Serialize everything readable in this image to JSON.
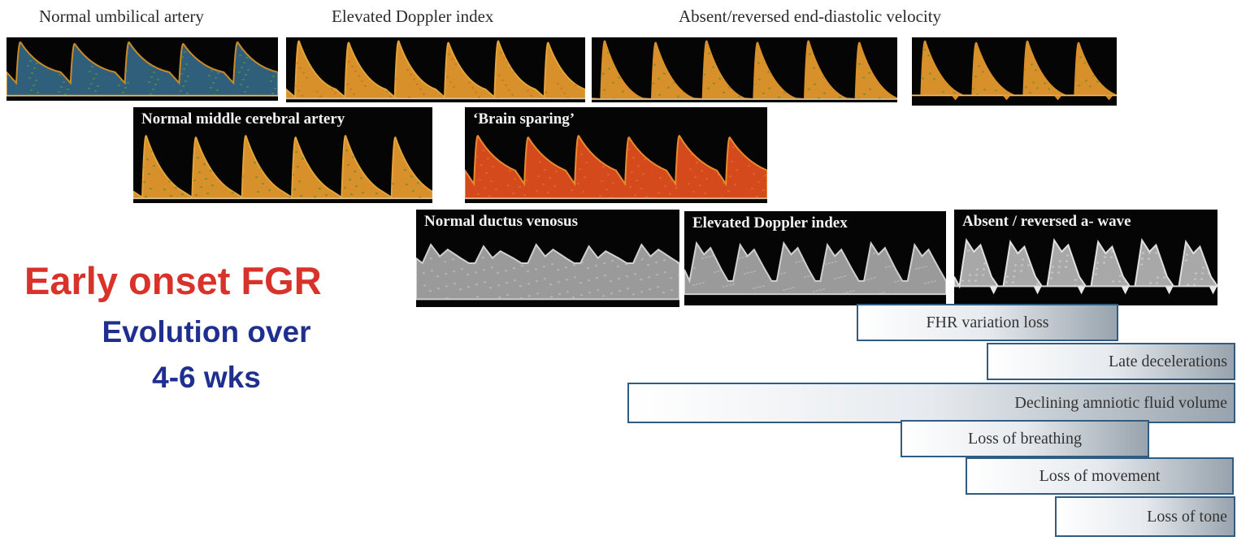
{
  "captions": {
    "umbilical_normal": "Normal umbilical artery",
    "umbilical_elevated": "Elevated Doppler index",
    "umbilical_absent": "Absent/reversed end-diastolic velocity"
  },
  "panels": {
    "mca_normal": "Normal middle cerebral artery",
    "brain_sparing": "‘Brain sparing’",
    "dv_normal": "Normal ductus venosus",
    "dv_elevated": "Elevated Doppler index",
    "dv_absent": "Absent / reversed a- wave"
  },
  "title": {
    "line1": "Early onset FGR",
    "line2": "Evolution over",
    "line3": "4-6 wks"
  },
  "bars": [
    {
      "key": "fhr",
      "label": "FHR variation loss"
    },
    {
      "key": "late_decel",
      "label": "Late decelerations"
    },
    {
      "key": "afv",
      "label": "Declining amniotic fluid volume"
    },
    {
      "key": "breathing",
      "label": "Loss of breathing"
    },
    {
      "key": "movement",
      "label": "Loss of movement"
    },
    {
      "key": "tone",
      "label": "Loss of tone"
    }
  ],
  "colors": {
    "title_red": "#d9322b",
    "title_blue": "#1f2f8f",
    "bar_border": "#2f5c80",
    "doppler_blue_green": "#2f5f7a",
    "doppler_orange": "#d8902a",
    "doppler_red": "#d44a1c",
    "venous_gray": "#9a9a9a"
  }
}
